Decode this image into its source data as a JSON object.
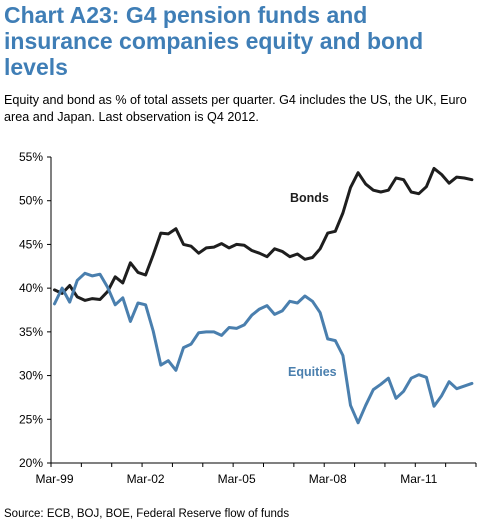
{
  "title": "Chart A23: G4 pension funds and insurance companies equity and bond levels",
  "subtitle": "Equity and bond as % of total assets per quarter. G4 includes the US, the UK, Euro area and Japan. Last observation is Q4 2012.",
  "source": "Source: ECB, BOJ, BOE, Federal Reserve flow of funds",
  "chart_data": {
    "type": "line",
    "xlabel": "",
    "ylabel": "",
    "ylim": [
      20,
      55
    ],
    "yticks": [
      "20%",
      "25%",
      "30%",
      "35%",
      "40%",
      "45%",
      "50%",
      "55%"
    ],
    "xticks": [
      "Mar-99",
      "Mar-02",
      "Mar-05",
      "Mar-08",
      "Mar-11"
    ],
    "x_start": "Q1 1999",
    "x_end": "Q4 2012",
    "grid": false,
    "legend": "inline labels",
    "colors": {
      "bonds": "#1e1e1e",
      "equities": "#4a7fae"
    },
    "series": [
      {
        "name": "Bonds",
        "values": [
          39.8,
          39.4,
          40.3,
          39.0,
          38.6,
          38.8,
          38.7,
          39.6,
          41.3,
          40.6,
          42.9,
          41.8,
          41.5,
          43.8,
          46.3,
          46.2,
          46.8,
          45.0,
          44.8,
          44.0,
          44.6,
          44.7,
          45.1,
          44.6,
          45.0,
          44.9,
          44.3,
          44.0,
          43.6,
          44.5,
          44.2,
          43.6,
          43.9,
          43.3,
          43.5,
          44.5,
          46.3,
          46.5,
          48.6,
          51.5,
          53.2,
          51.9,
          51.2,
          51.0,
          51.2,
          52.6,
          52.4,
          51.0,
          50.8,
          51.6,
          53.7,
          53.0,
          52.0,
          52.7,
          52.6,
          52.4
        ]
      },
      {
        "name": "Equities",
        "values": [
          38.2,
          40.0,
          38.4,
          40.9,
          41.7,
          41.4,
          41.6,
          40.1,
          38.1,
          38.9,
          36.2,
          38.3,
          38.1,
          35.1,
          31.2,
          31.7,
          30.6,
          33.2,
          33.6,
          34.9,
          35.0,
          35.0,
          34.6,
          35.5,
          35.4,
          35.8,
          36.9,
          37.6,
          38.0,
          37.0,
          37.4,
          38.5,
          38.3,
          39.1,
          38.5,
          37.2,
          34.2,
          34.0,
          32.3,
          26.6,
          24.6,
          26.6,
          28.4,
          29.0,
          29.7,
          27.4,
          28.2,
          29.7,
          30.1,
          29.8,
          26.5,
          27.7,
          29.3,
          28.5,
          28.8,
          29.1
        ]
      }
    ]
  }
}
